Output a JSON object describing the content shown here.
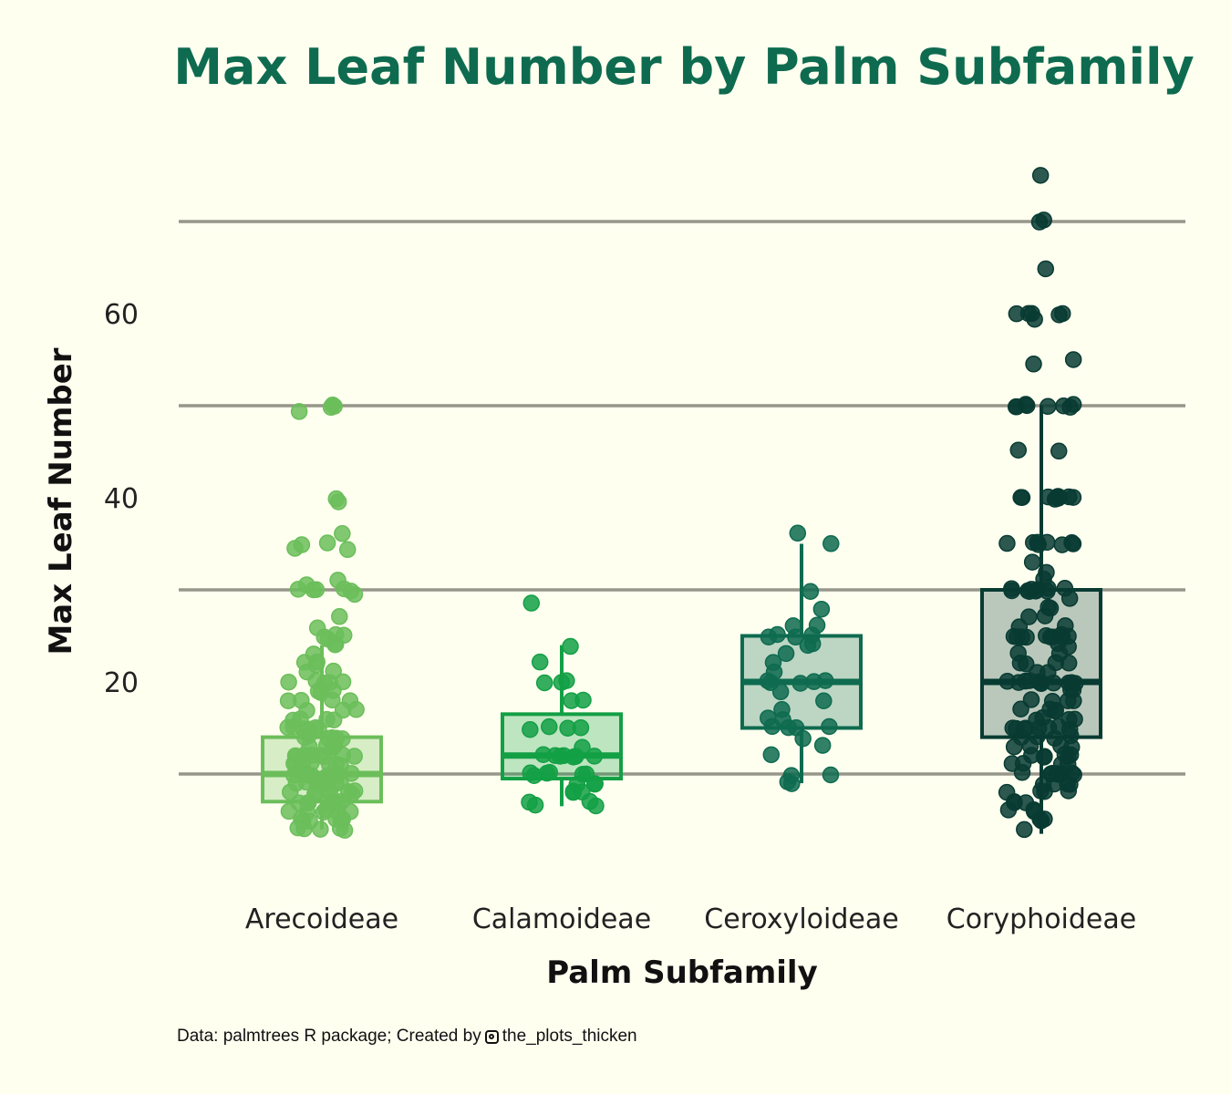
{
  "chart_data": {
    "type": "box",
    "title": "Max Leaf Number by Palm Subfamily",
    "xlabel": "Palm Subfamily",
    "ylabel": "Max Leaf Number",
    "ylim": [
      -3,
      80
    ],
    "yticks": [
      20,
      40,
      60
    ],
    "gridlines": [
      10,
      30,
      50,
      70
    ],
    "categories": [
      "Arecoideae",
      "Calamoideae",
      "Ceroxyloideae",
      "Coryphoideae"
    ],
    "colors": [
      "#6BBE5A",
      "#13A045",
      "#0E6B4F",
      "#083B32"
    ],
    "series": [
      {
        "name": "Arecoideae",
        "box": {
          "q1": 7,
          "median": 10,
          "q3": 14,
          "whisker_low": 4,
          "whisker_high": 24
        },
        "points": [
          50,
          50,
          50,
          49.5,
          40,
          39.5,
          36,
          35,
          35,
          34.5,
          34.5,
          31,
          30.5,
          30,
          30,
          30,
          30,
          30,
          29.5,
          27,
          26,
          25,
          25,
          25,
          24.5,
          24,
          24,
          23,
          22,
          22,
          22,
          21,
          21,
          20,
          20,
          20,
          20,
          20,
          19,
          19,
          19,
          18,
          18,
          18,
          18,
          17,
          17,
          17,
          16,
          16,
          16,
          16,
          15,
          15,
          15,
          15,
          15,
          15,
          14,
          14,
          14,
          14,
          14,
          14,
          13,
          13,
          13,
          13,
          13,
          13,
          12,
          12,
          12,
          12,
          12,
          12,
          12,
          12,
          11,
          11,
          11,
          11,
          11,
          11,
          11,
          10,
          10,
          10,
          10,
          10,
          10,
          10,
          10,
          10,
          10,
          9,
          9,
          9,
          9,
          9,
          9,
          9,
          8,
          8,
          8,
          8,
          8,
          8,
          8,
          8,
          7,
          7,
          7,
          7,
          7,
          7,
          7,
          6,
          6,
          6,
          6,
          6,
          6,
          5,
          5,
          5,
          5,
          5,
          5,
          4,
          4,
          4,
          4,
          4
        ]
      },
      {
        "name": "Calamoideae",
        "box": {
          "q1": 9.5,
          "median": 12,
          "q3": 16.5,
          "whisker_low": 6.5,
          "whisker_high": 24
        },
        "points": [
          28.5,
          24,
          22,
          20,
          20,
          20,
          18,
          18,
          15,
          15,
          15,
          15,
          13,
          12,
          12,
          12,
          12,
          12,
          12,
          12,
          10,
          10,
          10,
          10,
          10,
          10,
          9,
          9,
          9,
          8,
          8,
          8,
          7,
          7,
          6.5,
          6.5
        ]
      },
      {
        "name": "Ceroxyloideae",
        "box": {
          "q1": 15,
          "median": 20,
          "q3": 25,
          "whisker_low": 9,
          "whisker_high": 35
        },
        "points": [
          36,
          35,
          30,
          28,
          26,
          26,
          25,
          25,
          25,
          25,
          24,
          24,
          23,
          22,
          21,
          20,
          20,
          20,
          20,
          20,
          19,
          18,
          17,
          16,
          16,
          15,
          15,
          15,
          15,
          14,
          13,
          12,
          10,
          10,
          9,
          9
        ]
      },
      {
        "name": "Coryphoideae",
        "box": {
          "q1": 14,
          "median": 20,
          "q3": 30,
          "whisker_low": 3.5,
          "whisker_high": 50
        },
        "points": [
          75,
          70,
          70,
          65,
          60,
          60,
          60,
          60,
          60,
          59.5,
          55,
          54.5,
          50,
          50,
          50,
          50,
          50,
          50,
          50,
          50,
          45,
          45,
          40,
          40,
          40,
          40,
          40,
          40,
          40,
          40,
          40,
          40,
          35,
          35,
          35,
          35,
          35,
          35,
          35,
          35,
          33,
          32,
          31,
          30,
          30,
          30,
          30,
          30,
          30,
          30,
          30,
          30,
          30,
          29,
          28,
          28,
          27,
          27,
          26,
          26,
          25,
          25,
          25,
          25,
          25,
          25,
          25,
          25,
          25,
          25,
          24,
          24,
          23,
          23,
          22,
          22,
          22,
          22,
          21,
          21,
          20,
          20,
          20,
          20,
          20,
          20,
          20,
          20,
          20,
          20,
          20,
          19,
          19,
          18,
          18,
          18,
          18,
          17,
          17,
          17,
          17,
          16,
          16,
          16,
          16,
          15,
          15,
          15,
          15,
          15,
          15,
          15,
          15,
          14,
          14,
          14,
          14,
          13,
          13,
          13,
          13,
          12,
          12,
          12,
          12,
          12,
          12,
          11,
          11,
          11,
          11,
          10,
          10,
          10,
          10,
          10,
          10,
          10,
          10,
          9,
          9,
          9,
          9,
          8,
          8,
          8,
          8,
          7,
          7,
          7,
          6,
          6,
          6,
          5,
          5,
          5,
          4
        ]
      }
    ]
  },
  "caption": {
    "text_before": "Data: palmtrees R package; Created by",
    "icon": "instagram-icon",
    "handle": "the_plots_thicken"
  }
}
